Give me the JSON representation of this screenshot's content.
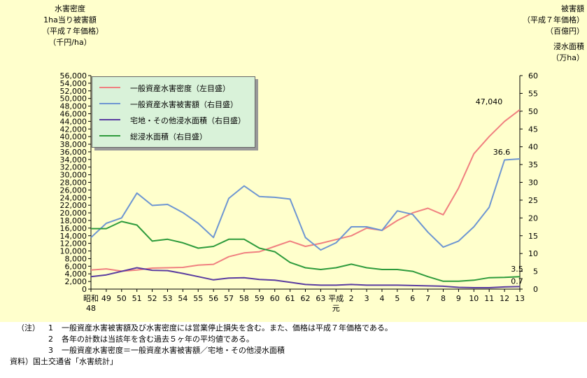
{
  "left_axis_title": [
    "水害密度",
    "1ha当り被害額",
    "（平成７年価格）",
    "（千円/ha）"
  ],
  "right_axis_title_1": [
    "被害額",
    "（平成７年価格）",
    "（百億円）"
  ],
  "right_axis_title_2": [
    "浸水面積",
    "（万ha）"
  ],
  "chart_data": {
    "type": "line",
    "categories": [
      "昭和48",
      "49",
      "50",
      "51",
      "52",
      "53",
      "54",
      "55",
      "56",
      "57",
      "58",
      "59",
      "60",
      "61",
      "62",
      "63",
      "平成元",
      "2",
      "3",
      "4",
      "5",
      "6",
      "7",
      "8",
      "9",
      "10",
      "11",
      "12",
      "13"
    ],
    "x_tick_labels": [
      [
        "昭和",
        "48"
      ],
      [
        "49"
      ],
      [
        "50"
      ],
      [
        "51"
      ],
      [
        "52"
      ],
      [
        "53"
      ],
      [
        "54"
      ],
      [
        "55"
      ],
      [
        "56"
      ],
      [
        "57"
      ],
      [
        "58"
      ],
      [
        "59"
      ],
      [
        "60"
      ],
      [
        "61"
      ],
      [
        "62"
      ],
      [
        "63"
      ],
      [
        "平成",
        "元"
      ],
      [
        "2"
      ],
      [
        "3"
      ],
      [
        "4"
      ],
      [
        "5"
      ],
      [
        "6"
      ],
      [
        "7"
      ],
      [
        "8"
      ],
      [
        "9"
      ],
      [
        "10"
      ],
      [
        "11"
      ],
      [
        "12"
      ],
      [
        "13"
      ]
    ],
    "y_left": {
      "min": 0,
      "max": 56000,
      "step": 2000,
      "tick_labels": [
        "0",
        "2,000",
        "4,000",
        "6,000",
        "8,000",
        "10,000",
        "12,000",
        "14,000",
        "16,000",
        "18,000",
        "20,000",
        "22,000",
        "24,000",
        "26,000",
        "28,000",
        "30,000",
        "32,000",
        "34,000",
        "36,000",
        "38,000",
        "40,000",
        "42,000",
        "44,000",
        "46,000",
        "48,000",
        "50,000",
        "52,000",
        "54,000",
        "56,000"
      ]
    },
    "y_right": {
      "min": 0,
      "max": 60,
      "step": 5,
      "tick_labels": [
        "0",
        "5",
        "10",
        "15",
        "20",
        "25",
        "30",
        "35",
        "40",
        "45",
        "50",
        "55",
        "60"
      ]
    },
    "series": [
      {
        "name": "一般資産水害密度（左目盛）",
        "axis": "left",
        "color": "#f08080",
        "values": [
          5000,
          5300,
          4700,
          5000,
          5500,
          5600,
          5700,
          6300,
          6500,
          8500,
          9500,
          9800,
          11200,
          12600,
          11200,
          12000,
          13000,
          14000,
          16000,
          15400,
          18000,
          20000,
          21200,
          19500,
          26500,
          35500,
          40000,
          44000,
          47040
        ]
      },
      {
        "name": "一般資産水害被害額（右目盛）",
        "axis": "right",
        "color": "#6e96d2",
        "values": [
          14.5,
          18.5,
          20,
          27,
          23.5,
          23.8,
          21.5,
          18.5,
          14.5,
          25.5,
          29,
          26,
          25.8,
          25.3,
          14.5,
          11,
          13,
          17.5,
          17.5,
          16.5,
          22,
          21,
          16,
          11.8,
          13.5,
          17.5,
          23,
          36.3,
          36.6
        ]
      },
      {
        "name": "宅地・その他浸水面積（右目盛）",
        "axis": "right",
        "color": "#5a3ca0",
        "values": [
          3.5,
          4,
          5,
          6,
          5.3,
          5.2,
          4.4,
          3.5,
          2.6,
          3.1,
          3.2,
          2.7,
          2.5,
          1.9,
          1.3,
          1.1,
          1.1,
          1.3,
          1.1,
          1.1,
          1.1,
          1,
          0.9,
          0.8,
          0.5,
          0.4,
          0.4,
          0.6,
          0.7
        ]
      },
      {
        "name": "総浸水面積（右目盛）",
        "axis": "right",
        "color": "#2e9b3c",
        "values": [
          17,
          17,
          19,
          18,
          13.5,
          14,
          13,
          11.5,
          12,
          14,
          14,
          11.5,
          10.5,
          7.5,
          6,
          5.5,
          6,
          7,
          6,
          5.5,
          5.5,
          5,
          3.5,
          2.2,
          2.2,
          2.5,
          3.2,
          3.3,
          3.5
        ]
      }
    ],
    "data_labels": [
      {
        "series": 0,
        "index": 28,
        "text": "47,040"
      },
      {
        "series": 1,
        "index": 28,
        "text": "36.6"
      },
      {
        "series": 3,
        "index": 28,
        "text": "3.5"
      },
      {
        "series": 2,
        "index": 28,
        "text": "0.7"
      }
    ],
    "legend_position": "top-left",
    "grid": false
  },
  "notes": {
    "mark": "（注）",
    "items": [
      {
        "num": "1",
        "text": "一般資産水害被害額及び水害密度には営業停止損失を含む。また、価格は平成７年価格である。"
      },
      {
        "num": "2",
        "text": "各年の計数は当該年を含む過去５ヶ年の平均値である。"
      },
      {
        "num": "3",
        "text": "一般資産水害密度＝一般資産水害被害額／宅地・その他浸水面積"
      }
    ],
    "source": "資料）国土交通省「水害統計」"
  }
}
